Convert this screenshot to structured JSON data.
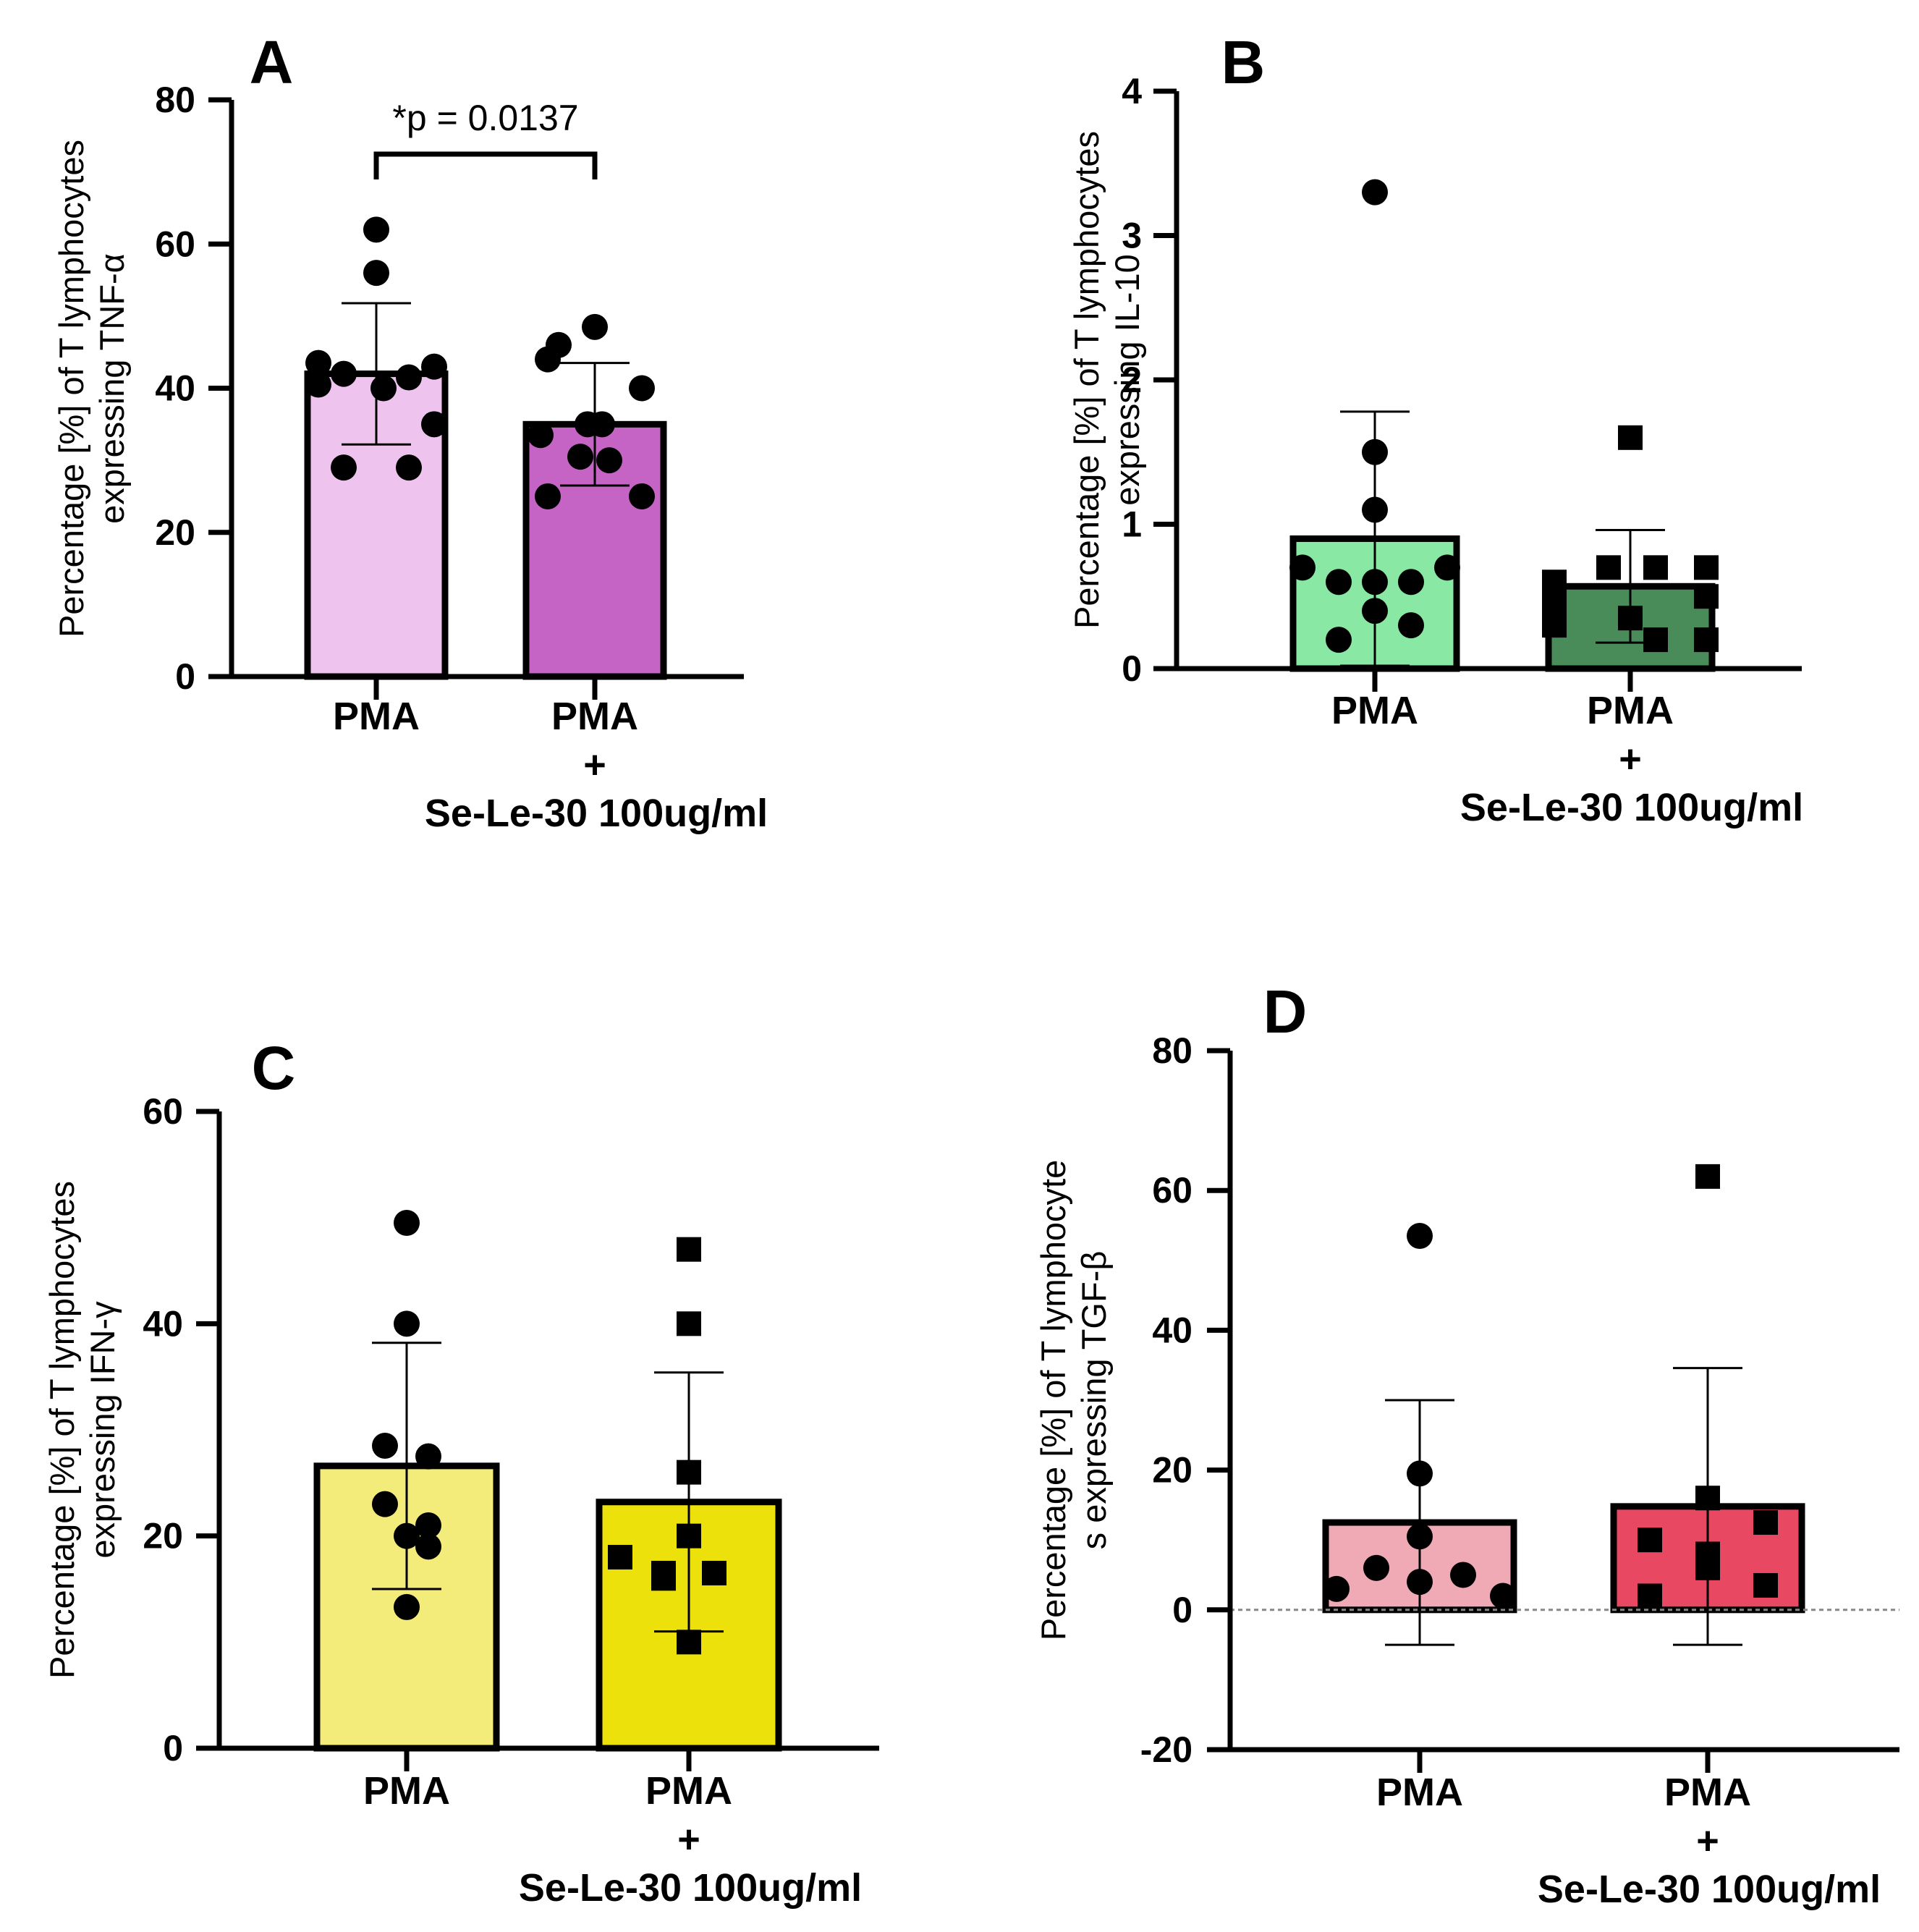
{
  "chart_data": [
    {
      "type": "bar",
      "panel": "A",
      "ylabel": [
        "Percentage [%] of T lymphocytes",
        "expressing TNF-α"
      ],
      "ylim": [
        0,
        80
      ],
      "yticks": [
        0,
        20,
        40,
        60,
        80
      ],
      "yticklabels": [
        "0",
        "20",
        "40",
        "60",
        "80"
      ],
      "categories": [
        [
          "PMA"
        ],
        [
          "PMA",
          "+",
          "Se-Le-30 100ug/ml"
        ]
      ],
      "values": [
        42,
        35
      ],
      "sd": [
        9.8,
        8.5
      ],
      "colors": [
        "#eec4ee",
        "#c564c5"
      ],
      "marker": [
        "circle",
        "circle"
      ],
      "points": [
        [
          62,
          56,
          43.5,
          43,
          42,
          41.5,
          40.5,
          40,
          35,
          29,
          29
        ],
        [
          48.5,
          46,
          44,
          40,
          35,
          35,
          33.5,
          30.5,
          30,
          25,
          25
        ]
      ],
      "annotation": "*p = 0.0137"
    },
    {
      "type": "bar",
      "panel": "B",
      "ylabel": [
        "Percentage [%] of T lymphocytes",
        "expressing IL-10"
      ],
      "ylim": [
        0,
        4
      ],
      "yticks": [
        0,
        1,
        2,
        3,
        4
      ],
      "yticklabels": [
        "0",
        "1",
        "2",
        "3",
        "4"
      ],
      "categories": [
        [
          "PMA"
        ],
        [
          "PMA",
          "+",
          "Se-Le-30 100ug/ml"
        ]
      ],
      "values": [
        0.9,
        0.57
      ],
      "sd": [
        0.88,
        0.39
      ],
      "colors": [
        "#88e8a4",
        "#4a8b5a"
      ],
      "marker": [
        "circle",
        "square"
      ],
      "points": [
        [
          3.3,
          1.5,
          1.1,
          0.7,
          0.7,
          0.6,
          0.6,
          0.6,
          0.4,
          0.3,
          0.2
        ],
        [
          1.6,
          0.7,
          0.7,
          0.7,
          0.6,
          0.5,
          0.45,
          0.35,
          0.3,
          0.2,
          0.2
        ]
      ]
    },
    {
      "type": "bar",
      "panel": "C",
      "ylabel": [
        "Percentage [%] of T lymphocytes",
        "expressing IFN-γ"
      ],
      "ylim": [
        0,
        60
      ],
      "yticks": [
        0,
        20,
        40,
        60
      ],
      "yticklabels": [
        "0",
        "20",
        "40",
        "60"
      ],
      "categories": [
        [
          "PMA"
        ],
        [
          "PMA",
          "+",
          "Se-Le-30 100ug/ml"
        ]
      ],
      "values": [
        26.6,
        23.2
      ],
      "sd": [
        11.6,
        12.2
      ],
      "colors": [
        "#f3ec7a",
        "#ede10c"
      ],
      "marker": [
        "circle",
        "square"
      ],
      "points": [
        [
          49.5,
          40,
          28.5,
          27.5,
          23,
          21,
          20,
          19,
          13.3
        ],
        [
          47,
          40,
          26,
          20,
          18,
          16.5,
          16,
          16.5,
          10
        ]
      ]
    },
    {
      "type": "bar",
      "panel": "D",
      "ylabel": [
        "Percentage [%] of T lymphocyte",
        "s expressing TGF-β"
      ],
      "ylim": [
        -20,
        80
      ],
      "yticks": [
        -20,
        0,
        20,
        40,
        60,
        80
      ],
      "yticklabels": [
        "-20",
        "0",
        "20",
        "40",
        "60",
        "80"
      ],
      "categories": [
        [
          "PMA"
        ],
        [
          "PMA",
          "+",
          "Se-Le-30 100ug/ml"
        ]
      ],
      "values": [
        12.5,
        14.8
      ],
      "sd": [
        17.5,
        19.8
      ],
      "colors": [
        "#f0aab6",
        "#e84862"
      ],
      "marker": [
        "circle",
        "square"
      ],
      "points": [
        [
          53.5,
          19.5,
          10.5,
          6,
          5,
          4,
          3,
          2
        ],
        [
          62,
          16,
          12.5,
          10,
          8,
          6,
          3.5,
          2
        ]
      ]
    }
  ]
}
